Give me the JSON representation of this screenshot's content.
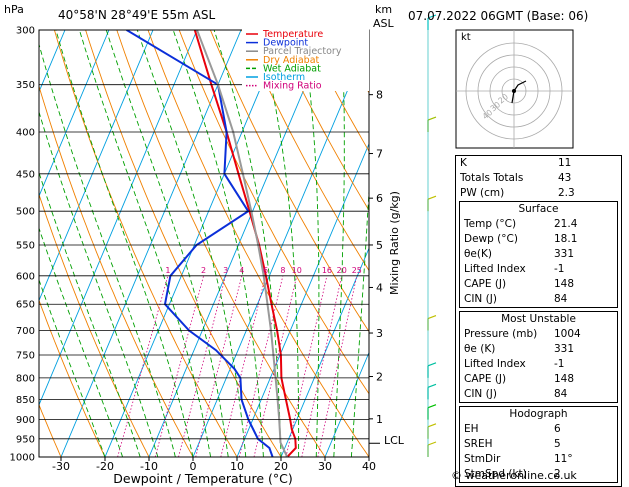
{
  "header": {
    "hpa_label": "hPa",
    "location": "40°58'N  28°49'E  55m  ASL",
    "km_label": "km",
    "asl_label": "ASL",
    "datetime": "07.07.2022  06GMT  (Base: 06)"
  },
  "legend": [
    {
      "label": "Temperature",
      "color": "#e8000b"
    },
    {
      "label": "Dewpoint",
      "color": "#0b2fd9"
    },
    {
      "label": "Parcel Trajectory",
      "color": "#888888"
    },
    {
      "label": "Dry Adiabat",
      "color": "#f08000"
    },
    {
      "label": "Wet Adiabat",
      "color": "#00a000"
    },
    {
      "label": "Isotherm",
      "color": "#00a0e0"
    },
    {
      "label": "Mixing Ratio",
      "color": "#d0007a"
    }
  ],
  "axis": {
    "xlabel": "Dewpoint / Temperature (°C)",
    "ylabel_right": "Mixing Ratio (g/kg)",
    "lcl_label": "LCL"
  },
  "hodograph": {
    "label": "kt",
    "ring_labels": [
      "40",
      "30",
      "20"
    ]
  },
  "indices": {
    "top": [
      {
        "label": "K",
        "value": "11"
      },
      {
        "label": "Totals Totals",
        "value": "43"
      },
      {
        "label": "PW (cm)",
        "value": "2.3"
      }
    ],
    "surface": {
      "title": "Surface",
      "rows": [
        {
          "label": "Temp (°C)",
          "value": "21.4"
        },
        {
          "label": "Dewp (°C)",
          "value": "18.1"
        },
        {
          "label": "θe(K)",
          "value": "331"
        },
        {
          "label": "Lifted Index",
          "value": "-1"
        },
        {
          "label": "CAPE (J)",
          "value": "148"
        },
        {
          "label": "CIN (J)",
          "value": "84"
        }
      ]
    },
    "most_unstable": {
      "title": "Most Unstable",
      "rows": [
        {
          "label": "Pressure (mb)",
          "value": "1004"
        },
        {
          "label": "θe (K)",
          "value": "331"
        },
        {
          "label": "Lifted Index",
          "value": "-1"
        },
        {
          "label": "CAPE (J)",
          "value": "148"
        },
        {
          "label": "CIN (J)",
          "value": "84"
        }
      ]
    },
    "hodograph": {
      "title": "Hodograph",
      "rows": [
        {
          "label": "EH",
          "value": "6"
        },
        {
          "label": "SREH",
          "value": "5"
        },
        {
          "label": "StmDir",
          "value": "11°"
        },
        {
          "label": "StmSpd (kt)",
          "value": "2"
        }
      ]
    }
  },
  "footer": "© weatheronline.co.uk",
  "chart_data": {
    "type": "line",
    "title": "40°58'N  28°49'E  55m  ASL",
    "xlabel": "Dewpoint / Temperature (°C)",
    "ylabel": "hPa",
    "pressure_levels": [
      300,
      350,
      400,
      450,
      500,
      550,
      600,
      650,
      700,
      750,
      800,
      850,
      900,
      950,
      1000
    ],
    "x_ticks": [
      -30,
      -20,
      -10,
      0,
      10,
      20,
      30,
      40
    ],
    "km_ticks": [
      {
        "label": "8",
        "p": 360
      },
      {
        "label": "7",
        "p": 425
      },
      {
        "label": "6",
        "p": 482
      },
      {
        "label": "5",
        "p": 550
      },
      {
        "label": "4",
        "p": 620
      },
      {
        "label": "3",
        "p": 705
      },
      {
        "label": "2",
        "p": 797
      },
      {
        "label": "1",
        "p": 898
      }
    ],
    "mixing_ratio_labels": [
      "1",
      "2",
      "3",
      "4",
      "6",
      "8",
      "10",
      "16",
      "20",
      "25"
    ],
    "mixing_ratio_values": [
      1,
      2,
      3,
      4,
      6,
      8,
      10,
      16,
      20,
      25
    ],
    "xlim": [
      -35,
      40
    ],
    "ylim": [
      1000,
      300
    ],
    "skew": "log-p skew-T",
    "series": [
      {
        "name": "Temperature",
        "points": [
          [
            1000,
            21.4
          ],
          [
            975,
            22.5
          ],
          [
            950,
            21.5
          ],
          [
            925,
            19.8
          ],
          [
            900,
            18.5
          ],
          [
            850,
            15.6
          ],
          [
            800,
            12.5
          ],
          [
            750,
            10.2
          ],
          [
            700,
            7.0
          ],
          [
            650,
            3.2
          ],
          [
            600,
            -0.8
          ],
          [
            550,
            -5.3
          ],
          [
            500,
            -10.7
          ],
          [
            450,
            -16.8
          ],
          [
            400,
            -23.5
          ],
          [
            350,
            -31.5
          ],
          [
            300,
            -40.5
          ]
        ]
      },
      {
        "name": "Dewpoint",
        "points": [
          [
            1000,
            18.1
          ],
          [
            975,
            16.5
          ],
          [
            950,
            13.0
          ],
          [
            900,
            9.0
          ],
          [
            850,
            5.5
          ],
          [
            800,
            3.2
          ],
          [
            780,
            1.0
          ],
          [
            740,
            -5.0
          ],
          [
            700,
            -13.0
          ],
          [
            650,
            -21.0
          ],
          [
            600,
            -22.5
          ],
          [
            550,
            -19.5
          ],
          [
            500,
            -11.0
          ],
          [
            450,
            -20.0
          ],
          [
            400,
            -23.5
          ],
          [
            350,
            -30.0
          ],
          [
            300,
            -56.0
          ]
        ]
      },
      {
        "name": "Parcel Trajectory",
        "points": [
          [
            1000,
            21.4
          ],
          [
            960,
            18.5
          ],
          [
            900,
            16.0
          ],
          [
            850,
            13.7
          ],
          [
            800,
            11.2
          ],
          [
            750,
            8.5
          ],
          [
            700,
            5.6
          ],
          [
            650,
            2.3
          ],
          [
            600,
            -1.3
          ],
          [
            550,
            -5.5
          ],
          [
            500,
            -10.3
          ],
          [
            450,
            -15.8
          ],
          [
            400,
            -22.0
          ],
          [
            350,
            -30.0
          ],
          [
            300,
            -40.0
          ]
        ]
      }
    ],
    "lcl_pressure": 962
  }
}
